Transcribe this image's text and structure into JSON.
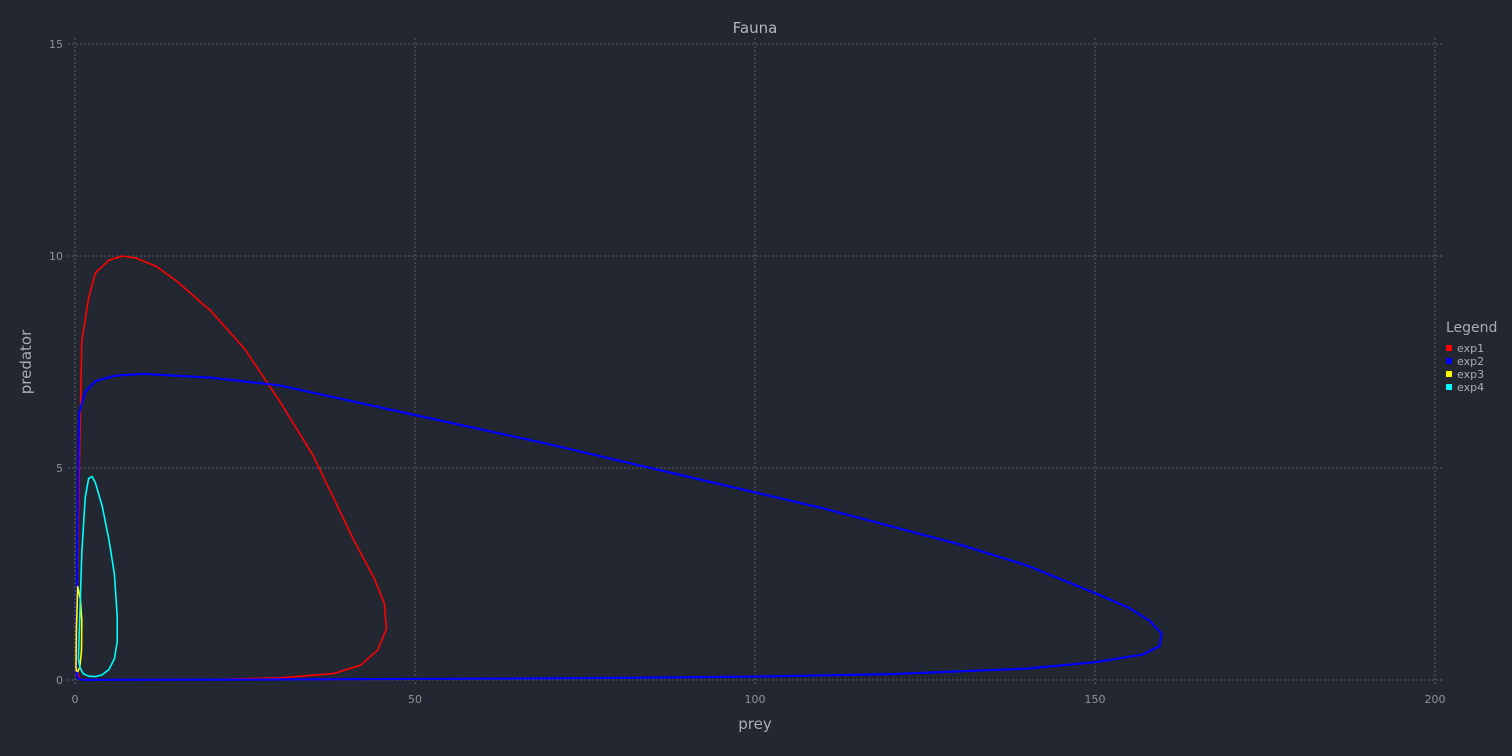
{
  "chart_data": {
    "type": "line",
    "title": "Fauna",
    "xlabel": "prey",
    "ylabel": "predator",
    "xlim": [
      0,
      200
    ],
    "ylim": [
      0,
      15
    ],
    "xticks": [
      "0",
      "50",
      "100",
      "150",
      "200"
    ],
    "yticks": [
      "0",
      "5",
      "10",
      "15"
    ],
    "grid": true,
    "legend": {
      "title": "Legend",
      "placement": "right",
      "entries": [
        "exp1",
        "exp2",
        "exp3",
        "exp4"
      ]
    },
    "series": [
      {
        "name": "exp1",
        "color": "#ff0000",
        "points": [
          [
            0.3,
            0.9
          ],
          [
            0.4,
            3
          ],
          [
            1,
            8
          ],
          [
            2,
            9
          ],
          [
            3,
            9.6
          ],
          [
            5,
            9.9
          ],
          [
            7,
            10
          ],
          [
            9,
            9.95
          ],
          [
            12,
            9.75
          ],
          [
            15,
            9.4
          ],
          [
            20,
            8.7
          ],
          [
            25,
            7.8
          ],
          [
            30,
            6.6
          ],
          [
            35,
            5.3
          ],
          [
            38,
            4.3
          ],
          [
            41,
            3.3
          ],
          [
            44,
            2.4
          ],
          [
            45.5,
            1.8
          ],
          [
            45.8,
            1.2
          ],
          [
            44.5,
            0.7
          ],
          [
            42,
            0.35
          ],
          [
            38,
            0.15
          ],
          [
            30,
            0.05
          ],
          [
            20,
            0.015
          ],
          [
            10,
            0.005
          ],
          [
            3,
            0.003
          ],
          [
            0.8,
            0.01
          ],
          [
            0.3,
            0.2
          ],
          [
            0.3,
            0.9
          ]
        ]
      },
      {
        "name": "exp2",
        "color": "#0000ff",
        "points": [
          [
            0.2,
            0.2
          ],
          [
            0.3,
            3
          ],
          [
            0.6,
            6.3
          ],
          [
            1.5,
            6.8
          ],
          [
            3,
            7.05
          ],
          [
            6,
            7.18
          ],
          [
            10,
            7.22
          ],
          [
            20,
            7.13
          ],
          [
            30,
            6.95
          ],
          [
            50,
            6.25
          ],
          [
            70,
            5.55
          ],
          [
            90,
            4.8
          ],
          [
            110,
            4.05
          ],
          [
            130,
            3.2
          ],
          [
            140,
            2.7
          ],
          [
            150,
            2.05
          ],
          [
            155,
            1.7
          ],
          [
            158,
            1.4
          ],
          [
            159.8,
            1.1
          ],
          [
            159.5,
            0.8
          ],
          [
            157,
            0.6
          ],
          [
            150,
            0.42
          ],
          [
            140,
            0.27
          ],
          [
            120,
            0.14
          ],
          [
            100,
            0.08
          ],
          [
            80,
            0.05
          ],
          [
            60,
            0.03
          ],
          [
            40,
            0.02
          ],
          [
            20,
            0.01
          ],
          [
            8,
            0.005
          ],
          [
            3,
            0.003
          ],
          [
            1,
            0.005
          ],
          [
            0.4,
            0.05
          ],
          [
            0.2,
            0.2
          ]
        ]
      },
      {
        "name": "exp3",
        "color": "#ffff00",
        "points": [
          [
            0.15,
            0.3
          ],
          [
            0.2,
            1.2
          ],
          [
            0.4,
            2.2
          ],
          [
            0.8,
            1.9
          ],
          [
            1,
            1.4
          ],
          [
            0.95,
            0.7
          ],
          [
            0.7,
            0.3
          ],
          [
            0.4,
            0.2
          ],
          [
            0.2,
            0.22
          ],
          [
            0.15,
            0.3
          ]
        ]
      },
      {
        "name": "exp4",
        "color": "#00ffff",
        "points": [
          [
            0.5,
            0.5
          ],
          [
            0.7,
            1.5
          ],
          [
            1,
            3
          ],
          [
            1.5,
            4.3
          ],
          [
            2,
            4.75
          ],
          [
            2.5,
            4.8
          ],
          [
            3,
            4.65
          ],
          [
            4,
            4.1
          ],
          [
            5,
            3.3
          ],
          [
            5.8,
            2.5
          ],
          [
            6.2,
            1.5
          ],
          [
            6.2,
            0.9
          ],
          [
            5.8,
            0.5
          ],
          [
            5,
            0.25
          ],
          [
            4,
            0.12
          ],
          [
            3,
            0.08
          ],
          [
            2,
            0.09
          ],
          [
            1.2,
            0.15
          ],
          [
            0.7,
            0.3
          ],
          [
            0.5,
            0.5
          ]
        ]
      }
    ]
  }
}
